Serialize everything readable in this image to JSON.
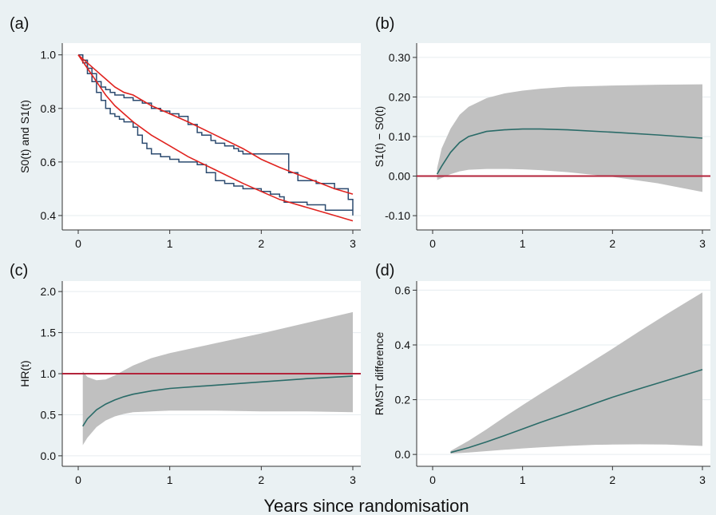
{
  "figure": {
    "xlabel": "Years since randomisation"
  },
  "chart_data": [
    {
      "panel": "(a)",
      "type": "line",
      "ylabel": "S0(t) and S1(t)",
      "xlim": [
        0,
        3
      ],
      "ylim": [
        0.37,
        1.02
      ],
      "xticks": [
        0,
        1,
        2,
        3
      ],
      "yticks": [
        0.4,
        0.6,
        0.8,
        1.0
      ],
      "ytick_labels": [
        "0.4",
        "0.6",
        "0.8",
        "1.0"
      ],
      "grid": true,
      "steps": [
        {
          "color": "#2b4a6f",
          "x": [
            0.0,
            0.05,
            0.1,
            0.15,
            0.2,
            0.25,
            0.3,
            0.35,
            0.4,
            0.5,
            0.6,
            0.7,
            0.8,
            0.9,
            1.0,
            1.1,
            1.2,
            1.3,
            1.35,
            1.45,
            1.5,
            1.6,
            1.7,
            1.75,
            1.8,
            2.0,
            2.2,
            2.3,
            2.4,
            2.6,
            2.8,
            2.95,
            3.0
          ],
          "y": [
            1.0,
            0.98,
            0.95,
            0.93,
            0.9,
            0.88,
            0.87,
            0.86,
            0.85,
            0.84,
            0.83,
            0.82,
            0.8,
            0.79,
            0.78,
            0.77,
            0.74,
            0.71,
            0.7,
            0.68,
            0.67,
            0.66,
            0.65,
            0.64,
            0.63,
            0.63,
            0.63,
            0.56,
            0.53,
            0.52,
            0.5,
            0.46,
            0.4
          ]
        },
        {
          "color": "#2b4a6f",
          "x": [
            0.0,
            0.05,
            0.1,
            0.15,
            0.2,
            0.25,
            0.3,
            0.35,
            0.4,
            0.45,
            0.5,
            0.6,
            0.65,
            0.7,
            0.75,
            0.8,
            0.9,
            1.0,
            1.1,
            1.3,
            1.4,
            1.5,
            1.6,
            1.7,
            1.8,
            1.9,
            2.0,
            2.1,
            2.2,
            2.25,
            2.5,
            2.7,
            3.0
          ],
          "y": [
            1.0,
            0.97,
            0.93,
            0.9,
            0.86,
            0.83,
            0.8,
            0.78,
            0.77,
            0.76,
            0.75,
            0.73,
            0.7,
            0.67,
            0.65,
            0.63,
            0.62,
            0.61,
            0.6,
            0.59,
            0.56,
            0.53,
            0.52,
            0.51,
            0.5,
            0.5,
            0.49,
            0.48,
            0.47,
            0.45,
            0.44,
            0.42,
            0.42
          ]
        }
      ],
      "curves": [
        {
          "color": "#e0231f",
          "x": [
            0.0,
            0.1,
            0.2,
            0.3,
            0.4,
            0.5,
            0.6,
            0.8,
            1.0,
            1.2,
            1.5,
            1.8,
            2.0,
            2.2,
            2.5,
            2.8,
            3.0
          ],
          "y": [
            1.0,
            0.97,
            0.94,
            0.91,
            0.88,
            0.86,
            0.85,
            0.81,
            0.78,
            0.75,
            0.7,
            0.65,
            0.61,
            0.58,
            0.54,
            0.5,
            0.48
          ]
        },
        {
          "color": "#e0231f",
          "x": [
            0.0,
            0.1,
            0.2,
            0.3,
            0.4,
            0.5,
            0.6,
            0.8,
            1.0,
            1.2,
            1.5,
            1.8,
            2.0,
            2.2,
            2.5,
            2.8,
            3.0
          ],
          "y": [
            1.0,
            0.95,
            0.9,
            0.85,
            0.81,
            0.78,
            0.75,
            0.7,
            0.66,
            0.62,
            0.57,
            0.52,
            0.49,
            0.46,
            0.43,
            0.4,
            0.38
          ]
        }
      ]
    },
    {
      "panel": "(b)",
      "type": "area",
      "ylabel": "S1(t) − S0(t)",
      "xlim": [
        0,
        3
      ],
      "ylim": [
        -0.12,
        0.32
      ],
      "xticks": [
        0,
        1,
        2,
        3
      ],
      "yticks": [
        -0.1,
        0.0,
        0.1,
        0.2,
        0.3
      ],
      "ytick_labels": [
        "-0.10",
        "0.00",
        "0.10",
        "0.20",
        "0.30"
      ],
      "reference_line": {
        "y": 0.0,
        "color": "#b3243b"
      },
      "grid": true,
      "x": [
        0.05,
        0.1,
        0.2,
        0.3,
        0.4,
        0.6,
        0.8,
        1.0,
        1.2,
        1.5,
        2.0,
        2.5,
        3.0
      ],
      "estimate": [
        0.005,
        0.025,
        0.06,
        0.085,
        0.1,
        0.113,
        0.117,
        0.119,
        0.119,
        0.117,
        0.111,
        0.104,
        0.096
      ],
      "lower": [
        -0.01,
        -0.005,
        0.005,
        0.012,
        0.016,
        0.018,
        0.018,
        0.017,
        0.015,
        0.01,
        -0.002,
        -0.018,
        -0.04
      ],
      "upper": [
        0.02,
        0.07,
        0.12,
        0.155,
        0.175,
        0.197,
        0.209,
        0.216,
        0.221,
        0.226,
        0.229,
        0.231,
        0.232
      ],
      "estimate_color": "#2a6b68",
      "band_color": "#c0c0c0"
    },
    {
      "panel": "(c)",
      "type": "area",
      "ylabel": "HR(t)",
      "xlim": [
        0,
        3
      ],
      "ylim": [
        -0.05,
        2.05
      ],
      "xticks": [
        0,
        1,
        2,
        3
      ],
      "yticks": [
        0.0,
        0.5,
        1.0,
        1.5,
        2.0
      ],
      "ytick_labels": [
        "0.0",
        "0.5",
        "1.0",
        "1.5",
        "2.0"
      ],
      "reference_line": {
        "y": 1.0,
        "color": "#b3243b"
      },
      "grid": true,
      "x": [
        0.05,
        0.1,
        0.2,
        0.3,
        0.4,
        0.5,
        0.6,
        0.8,
        1.0,
        1.5,
        2.0,
        2.5,
        3.0
      ],
      "estimate": [
        0.36,
        0.45,
        0.56,
        0.63,
        0.68,
        0.72,
        0.75,
        0.79,
        0.82,
        0.86,
        0.9,
        0.94,
        0.97
      ],
      "lower": [
        0.13,
        0.22,
        0.35,
        0.43,
        0.48,
        0.51,
        0.53,
        0.54,
        0.55,
        0.55,
        0.54,
        0.54,
        0.53
      ],
      "upper": [
        1.03,
        0.96,
        0.92,
        0.93,
        0.98,
        1.04,
        1.1,
        1.19,
        1.25,
        1.37,
        1.49,
        1.62,
        1.75
      ],
      "estimate_color": "#2a6b68",
      "band_color": "#c0c0c0"
    },
    {
      "panel": "(d)",
      "type": "area",
      "ylabel": "RMST difference",
      "xlim": [
        0,
        3
      ],
      "ylim": [
        -0.02,
        0.61
      ],
      "xticks": [
        0,
        1,
        2,
        3
      ],
      "yticks": [
        0.0,
        0.2,
        0.4,
        0.6
      ],
      "ytick_labels": [
        "0.0",
        "0.2",
        "0.4",
        "0.6"
      ],
      "grid": true,
      "x": [
        0.2,
        0.4,
        0.6,
        0.8,
        1.0,
        1.2,
        1.5,
        1.8,
        2.0,
        2.3,
        2.6,
        3.0
      ],
      "estimate": [
        0.007,
        0.025,
        0.046,
        0.069,
        0.093,
        0.117,
        0.151,
        0.186,
        0.209,
        0.24,
        0.27,
        0.31
      ],
      "lower": [
        0.003,
        0.007,
        0.012,
        0.017,
        0.022,
        0.026,
        0.031,
        0.035,
        0.036,
        0.037,
        0.036,
        0.031
      ],
      "upper": [
        0.013,
        0.05,
        0.092,
        0.137,
        0.18,
        0.222,
        0.283,
        0.345,
        0.386,
        0.45,
        0.512,
        0.592
      ],
      "estimate_color": "#2a6b68",
      "band_color": "#c0c0c0"
    }
  ]
}
